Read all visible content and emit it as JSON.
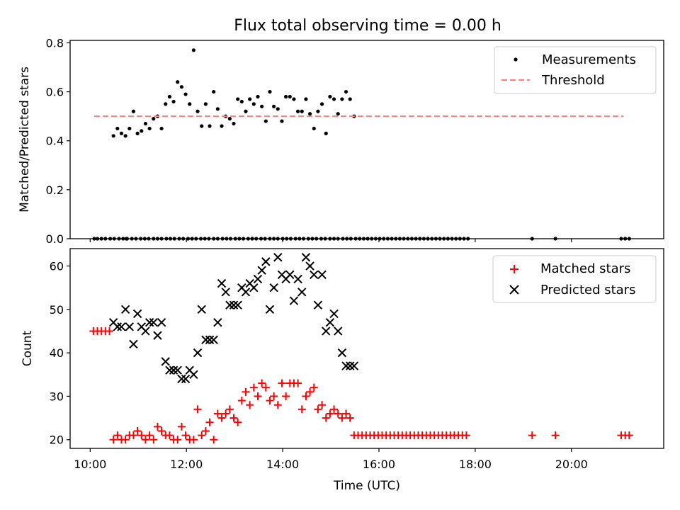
{
  "colors": {
    "measurement": "#000000",
    "threshold": "#ff7f7f",
    "matched": "#ff0000",
    "predicted": "#000000"
  },
  "chart_data": [
    {
      "type": "scatter",
      "title": "Flux total observing time = 0.00 h",
      "xlabel": "",
      "ylabel": "Matched/Predicted stars",
      "xlim": [
        "09:35",
        "21:55"
      ],
      "ylim": [
        0,
        0.81
      ],
      "yticks": [
        0.0,
        0.2,
        0.4,
        0.6,
        0.8
      ],
      "ytick_labels": [
        "0.0",
        "0.2",
        "0.4",
        "0.6",
        "0.8"
      ],
      "xticks": [
        "10:00",
        "12:00",
        "14:00",
        "16:00",
        "18:00",
        "20:00"
      ],
      "grid": false,
      "legend_position": "upper right",
      "series": [
        {
          "name": "Measurements",
          "marker": "dot",
          "x": [
            "10:05",
            "10:09",
            "10:14",
            "10:19",
            "10:25",
            "10:30",
            "10:36",
            "10:41",
            "10:46",
            "10:52",
            "10:57",
            "11:03",
            "11:08",
            "11:13",
            "11:19",
            "11:24",
            "11:29",
            "11:35",
            "11:40",
            "11:45",
            "11:51",
            "11:56",
            "12:02",
            "12:07",
            "12:12",
            "12:18",
            "12:23",
            "12:28",
            "12:34",
            "12:39",
            "12:45",
            "12:50",
            "12:55",
            "13:01",
            "13:06",
            "13:11",
            "13:17",
            "13:22",
            "13:27",
            "13:33",
            "13:38",
            "13:44",
            "13:49",
            "13:54",
            "14:00",
            "14:05",
            "14:10",
            "14:16",
            "14:21",
            "14:26",
            "14:32",
            "14:37",
            "14:42",
            "14:48",
            "14:53",
            "14:59",
            "15:04",
            "15:09",
            "15:15",
            "15:20",
            "15:25",
            "15:31",
            "10:29",
            "10:34",
            "10:39",
            "10:44",
            "10:49",
            "10:54",
            "10:59",
            "11:04",
            "11:09",
            "11:14",
            "11:19",
            "11:24",
            "11:29",
            "11:34",
            "11:39",
            "11:44",
            "11:49",
            "11:54",
            "11:59",
            "12:04",
            "12:09",
            "12:14",
            "12:19",
            "12:24",
            "12:29",
            "12:34",
            "12:39",
            "12:44",
            "12:49",
            "12:54",
            "12:59",
            "13:04",
            "13:09",
            "13:14",
            "13:19",
            "13:24",
            "13:29",
            "13:34",
            "13:39",
            "13:44",
            "13:49",
            "13:54",
            "13:59",
            "14:04",
            "14:09",
            "14:14",
            "14:19",
            "14:24",
            "14:29",
            "14:34",
            "14:39",
            "14:44",
            "14:49",
            "14:54",
            "14:59",
            "15:04",
            "15:09",
            "15:14",
            "15:19",
            "15:24",
            "15:29",
            "10:45",
            "15:36",
            "15:41",
            "15:46",
            "15:51",
            "15:56",
            "16:01",
            "16:06",
            "16:11",
            "16:16",
            "16:21",
            "16:26",
            "16:31",
            "16:36",
            "16:41",
            "16:46",
            "16:51",
            "16:56",
            "17:01",
            "17:06",
            "17:11",
            "17:16",
            "17:21",
            "17:26",
            "17:31",
            "17:36",
            "17:41",
            "17:46",
            "17:51",
            "19:11",
            "19:40",
            "21:02",
            "21:07",
            "21:12"
          ],
          "y": [
            0,
            0,
            0,
            0,
            0,
            0,
            0,
            0,
            0,
            0,
            0,
            0,
            0,
            0,
            0,
            0,
            0,
            0,
            0,
            0,
            0,
            0,
            0,
            0,
            0,
            0,
            0,
            0,
            0,
            0,
            0,
            0,
            0,
            0,
            0,
            0,
            0,
            0,
            0,
            0,
            0,
            0,
            0,
            0,
            0,
            0,
            0,
            0,
            0,
            0,
            0,
            0,
            0,
            0,
            0,
            0,
            0,
            0,
            0,
            0,
            0,
            0,
            0.42,
            0.45,
            0.43,
            0.42,
            0.45,
            0.52,
            0.43,
            0.44,
            0.47,
            0.45,
            0.49,
            0.5,
            0.45,
            0.55,
            0.58,
            0.56,
            0.64,
            0.62,
            0.59,
            0.55,
            0.77,
            0.52,
            0.46,
            0.55,
            0.46,
            0.6,
            0.53,
            0.46,
            0.5,
            0.49,
            0.47,
            0.57,
            0.56,
            0.52,
            0.57,
            0.55,
            0.58,
            0.54,
            0.48,
            0.6,
            0.54,
            0.53,
            0.48,
            0.58,
            0.58,
            0.57,
            0.52,
            0.52,
            0.57,
            0.51,
            0.45,
            0.52,
            0.55,
            0.43,
            0.58,
            0.57,
            0.51,
            0.57,
            0.6,
            0.57,
            0.5,
            0,
            0,
            0,
            0,
            0,
            0,
            0,
            0,
            0,
            0,
            0,
            0,
            0,
            0,
            0,
            0,
            0,
            0,
            0,
            0,
            0,
            0,
            0,
            0,
            0,
            0,
            0,
            0,
            0,
            0,
            0,
            0,
            0,
            0
          ]
        },
        {
          "name": "Threshold",
          "line_style": "dashed",
          "x": [
            "10:05",
            "21:05"
          ],
          "y": [
            0.5,
            0.5
          ]
        }
      ]
    },
    {
      "type": "scatter",
      "title": "",
      "xlabel": "Time (UTC)",
      "ylabel": "Count",
      "xlim": [
        "09:35",
        "21:55"
      ],
      "ylim": [
        18,
        64
      ],
      "yticks": [
        20,
        30,
        40,
        50,
        60
      ],
      "ytick_labels": [
        "20",
        "30",
        "40",
        "50",
        "60"
      ],
      "xticks": [
        "10:00",
        "12:00",
        "14:00",
        "16:00",
        "18:00",
        "20:00"
      ],
      "xtick_labels": [
        "10:00",
        "12:00",
        "14:00",
        "16:00",
        "18:00",
        "20:00"
      ],
      "grid": false,
      "legend_position": "upper right",
      "series": [
        {
          "name": "Matched stars",
          "marker": "plus",
          "x": [
            "10:04",
            "10:09",
            "10:14",
            "10:19",
            "10:24",
            "10:29",
            "10:34",
            "10:39",
            "10:44",
            "10:49",
            "10:54",
            "10:59",
            "11:04",
            "11:09",
            "11:14",
            "11:19",
            "11:24",
            "11:29",
            "11:34",
            "11:39",
            "11:44",
            "11:49",
            "11:54",
            "11:59",
            "12:04",
            "12:09",
            "12:14",
            "12:19",
            "12:24",
            "12:29",
            "12:34",
            "12:39",
            "12:44",
            "12:49",
            "12:54",
            "12:59",
            "13:04",
            "13:09",
            "13:14",
            "13:19",
            "13:24",
            "13:29",
            "13:34",
            "13:39",
            "13:44",
            "13:49",
            "13:54",
            "13:59",
            "14:04",
            "14:09",
            "14:14",
            "14:19",
            "14:24",
            "14:29",
            "14:34",
            "14:39",
            "14:44",
            "14:49",
            "14:54",
            "14:59",
            "15:04",
            "15:09",
            "15:14",
            "15:19",
            "15:24",
            "15:29",
            "15:34",
            "15:39",
            "15:44",
            "15:49",
            "15:54",
            "15:59",
            "16:04",
            "16:09",
            "16:14",
            "16:19",
            "16:24",
            "16:29",
            "16:34",
            "16:39",
            "16:44",
            "16:49",
            "16:54",
            "16:59",
            "17:04",
            "17:09",
            "17:14",
            "17:19",
            "17:24",
            "17:29",
            "17:34",
            "17:39",
            "17:44",
            "17:49",
            "19:11",
            "19:40",
            "21:02",
            "21:07",
            "21:12"
          ],
          "y": [
            45,
            45,
            45,
            45,
            45,
            20,
            21,
            20,
            20,
            21,
            21,
            22,
            21,
            20,
            21,
            20,
            23,
            22,
            21,
            21,
            20,
            20,
            23,
            21,
            20,
            20,
            27,
            21,
            22,
            24,
            20,
            26,
            25,
            26,
            27,
            25,
            24,
            29,
            31,
            28,
            32,
            30,
            33,
            32,
            29,
            30,
            28,
            33,
            30,
            33,
            33,
            33,
            27,
            30,
            31,
            32,
            27,
            28,
            25,
            26,
            27,
            26,
            25,
            26,
            25,
            21,
            21,
            21,
            21,
            21,
            21,
            21,
            21,
            21,
            21,
            21,
            21,
            21,
            21,
            21,
            21,
            21,
            21,
            21,
            21,
            21,
            21,
            21,
            21,
            21,
            21,
            21,
            21,
            21,
            21,
            21,
            21,
            21,
            21
          ]
        },
        {
          "name": "Predicted stars",
          "marker": "x",
          "x": [
            "10:29",
            "10:34",
            "10:39",
            "10:44",
            "10:49",
            "10:54",
            "10:59",
            "11:04",
            "11:09",
            "11:14",
            "11:19",
            "11:24",
            "11:29",
            "11:34",
            "11:39",
            "11:44",
            "11:49",
            "11:54",
            "11:59",
            "12:04",
            "12:09",
            "12:14",
            "12:19",
            "12:24",
            "12:29",
            "12:34",
            "12:39",
            "12:44",
            "12:49",
            "12:54",
            "12:59",
            "13:04",
            "13:09",
            "13:14",
            "13:19",
            "13:24",
            "13:29",
            "13:34",
            "13:39",
            "13:44",
            "13:49",
            "13:54",
            "13:59",
            "14:04",
            "14:09",
            "14:14",
            "14:19",
            "14:24",
            "14:29",
            "14:34",
            "14:39",
            "14:44",
            "14:49",
            "14:54",
            "14:59",
            "15:04",
            "15:09",
            "15:14",
            "15:19",
            "15:24",
            "15:29"
          ],
          "y": [
            47,
            46,
            46,
            50,
            46,
            42,
            49,
            46,
            45,
            47,
            47,
            44,
            47,
            38,
            36,
            36,
            36,
            34,
            34,
            36,
            35,
            40,
            50,
            43,
            43,
            43,
            47,
            56,
            54,
            51,
            51,
            51,
            55,
            54,
            56,
            55,
            57,
            59,
            61,
            50,
            55,
            62,
            58,
            57,
            58,
            52,
            57,
            54,
            62,
            60,
            58,
            51,
            58,
            45,
            47,
            49,
            45,
            40,
            37,
            37,
            37
          ]
        }
      ]
    }
  ]
}
